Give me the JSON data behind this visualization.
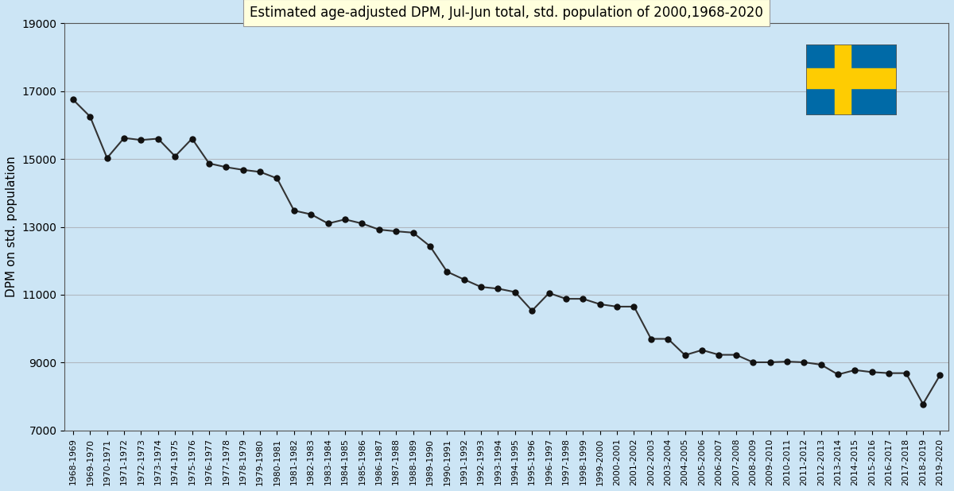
{
  "title": "Estimated age-adjusted DPM, Jul-Jun total, std. population of 2000,1968-2020",
  "ylabel": "DPM on std. population",
  "background_color": "#cce5f5",
  "title_bg_color": "#ffffdd",
  "ylim": [
    7000,
    19000
  ],
  "yticks": [
    7000,
    9000,
    11000,
    13000,
    15000,
    17000,
    19000
  ],
  "categories": [
    "1968-1969",
    "1969-1970",
    "1970-1971",
    "1971-1972",
    "1972-1973",
    "1973-1974",
    "1974-1975",
    "1975-1976",
    "1976-1977",
    "1977-1978",
    "1978-1979",
    "1979-1980",
    "1980-1981",
    "1981-1982",
    "1982-1983",
    "1983-1984",
    "1984-1985",
    "1985-1986",
    "1986-1987",
    "1987-1988",
    "1988-1989",
    "1989-1990",
    "1990-1991",
    "1991-1992",
    "1992-1993",
    "1993-1994",
    "1994-1995",
    "1995-1996",
    "1996-1997",
    "1997-1998",
    "1998-1999",
    "1999-2000",
    "2000-2001",
    "2001-2002",
    "2002-2003",
    "2003-2004",
    "2004-2005",
    "2005-2006",
    "2006-2007",
    "2007-2008",
    "2008-2009",
    "2009-2010",
    "2010-2011",
    "2011-2012",
    "2012-2013",
    "2013-2014",
    "2014-2015",
    "2015-2016",
    "2016-2017",
    "2017-2018",
    "2018-2019",
    "2019-2020"
  ],
  "values": [
    16750,
    16250,
    15030,
    15620,
    15560,
    15600,
    15080,
    15600,
    14870,
    14760,
    14680,
    14620,
    14430,
    13480,
    13370,
    13100,
    13220,
    13100,
    12920,
    12870,
    12830,
    12430,
    11680,
    11450,
    11230,
    11180,
    11080,
    10530,
    11050,
    10880,
    10880,
    10720,
    10650,
    10650,
    9700,
    9700,
    9220,
    9370,
    9230,
    9230,
    9010,
    9010,
    9030,
    9010,
    8940,
    8650,
    8780,
    8720,
    8690,
    8690,
    7780,
    8630
  ],
  "line_color": "#333333",
  "marker_color": "#111111",
  "marker_size": 5,
  "line_width": 1.5,
  "grid_color": "#b0b8c0",
  "sweden_flag": true
}
